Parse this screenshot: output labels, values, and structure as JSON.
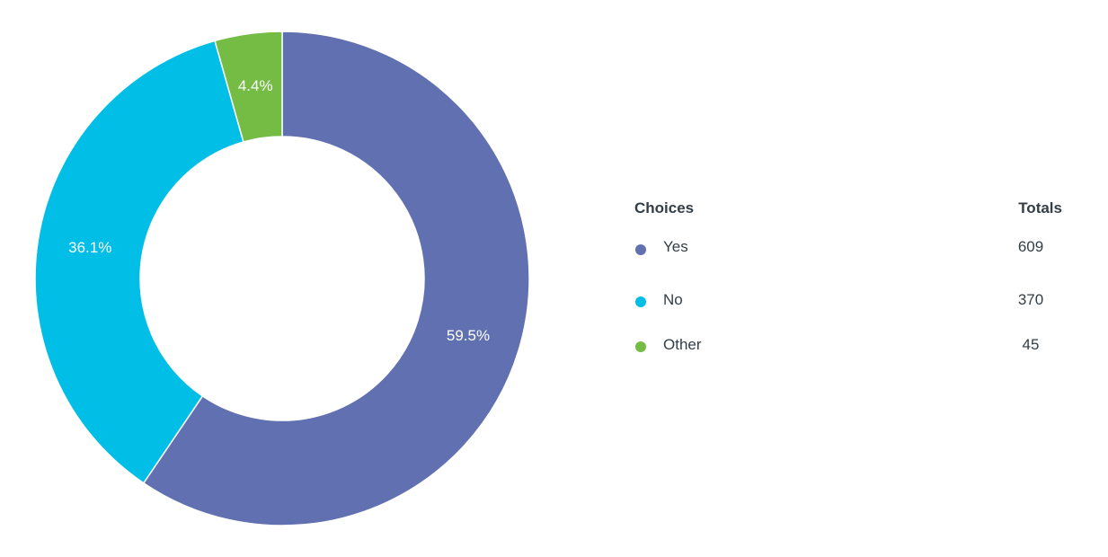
{
  "chart_data": {
    "type": "pie",
    "donut": true,
    "categories": [
      "Yes",
      "No",
      "Other"
    ],
    "values": [
      609,
      370,
      45
    ],
    "percent_labels": [
      "59.5%",
      "36.1%",
      "4.4%"
    ],
    "colors": [
      "#6170b0",
      "#00bee6",
      "#75bc44"
    ],
    "legend": {
      "placement": "right",
      "choices_header": "Choices",
      "totals_header": "Totals",
      "totals": [
        "609",
        "370",
        "45"
      ]
    }
  }
}
